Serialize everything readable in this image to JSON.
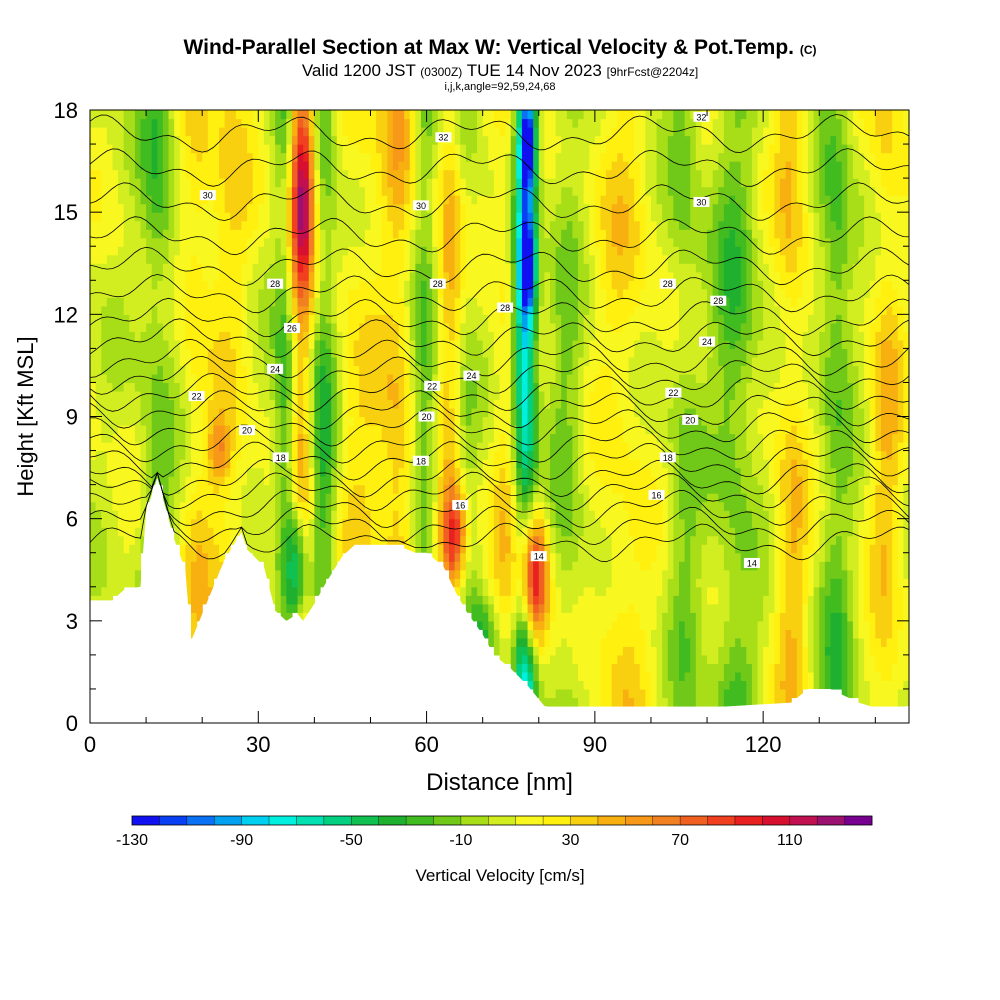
{
  "title": {
    "main": "Wind-Parallel Section at Max W: Vertical Velocity & Pot.Temp.",
    "copyright": "(C)",
    "valid_prefix": "Valid 1200 JST",
    "valid_utc": "(0300Z)",
    "valid_date": "TUE 14 Nov 2023",
    "forecast": "[9hrFcst@2204z]",
    "params": "i,j,k,angle=92,59,24,68"
  },
  "chart_data": {
    "type": "heatmap",
    "xlabel": "Distance [nm]",
    "ylabel": "Height [Kft MSL]",
    "xlim": [
      0,
      146
    ],
    "ylim": [
      0,
      18
    ],
    "x_ticks": [
      0,
      30,
      60,
      90,
      120
    ],
    "y_ticks": [
      0,
      3,
      6,
      9,
      12,
      15,
      18
    ],
    "colorbar": {
      "label": "Vertical Velocity [cm/s]",
      "tick_labels": [
        -130,
        -90,
        -50,
        -10,
        30,
        70,
        110
      ],
      "bins": [
        -130,
        -120,
        -110,
        -100,
        -90,
        -80,
        -70,
        -60,
        -50,
        -40,
        -30,
        -20,
        -10,
        0,
        10,
        20,
        30,
        40,
        50,
        60,
        70,
        80,
        90,
        100,
        110,
        120,
        130
      ],
      "colors": [
        "#1010f0",
        "#0a40f4",
        "#0a70f4",
        "#00a0f0",
        "#00d0f0",
        "#00f0e0",
        "#00e0b0",
        "#00d080",
        "#10c050",
        "#20b030",
        "#40bc20",
        "#70c818",
        "#a8de18",
        "#d2ee20",
        "#f8f820",
        "#fff010",
        "#f8d010",
        "#f8b010",
        "#f89818",
        "#f08020",
        "#f06020",
        "#f04020",
        "#e82020",
        "#d81030",
        "#c01050",
        "#9c1070",
        "#780090"
      ]
    },
    "velocity_bands": [
      {
        "x": 12,
        "w": 3,
        "v": -30
      },
      {
        "x": 19,
        "w": 3,
        "v": 20
      },
      {
        "x": 25,
        "w": 4,
        "v": 20
      },
      {
        "x": 35,
        "w": 2,
        "v": -40
      },
      {
        "x": 37.5,
        "w": 2.5,
        "v": 60
      },
      {
        "x": 41.5,
        "w": 2.5,
        "v": -40
      },
      {
        "x": 48,
        "w": 5,
        "v": 20
      },
      {
        "x": 55,
        "w": 3,
        "v": 30
      },
      {
        "x": 60,
        "w": 2.5,
        "v": -30
      },
      {
        "x": 64,
        "w": 3,
        "v": 30
      },
      {
        "x": 67,
        "w": 2,
        "v": -20
      },
      {
        "x": 74,
        "w": 3,
        "v": 20
      },
      {
        "x": 77.5,
        "w": 2,
        "v": -90
      },
      {
        "x": 85,
        "w": 3,
        "v": -20
      },
      {
        "x": 95,
        "w": 5,
        "v": 20
      },
      {
        "x": 106,
        "w": 3,
        "v": -20
      },
      {
        "x": 115,
        "w": 4,
        "v": -30
      },
      {
        "x": 125,
        "w": 3,
        "v": 30
      },
      {
        "x": 133,
        "w": 3,
        "v": -30
      },
      {
        "x": 142,
        "w": 3,
        "v": 30
      }
    ],
    "velocity_cells": [
      {
        "x": 37,
        "y": 4.5,
        "rx": 2,
        "ry": 2,
        "v": -90
      },
      {
        "x": 38,
        "y": 15.5,
        "rx": 2,
        "ry": 2.5,
        "v": 60
      },
      {
        "x": 65,
        "y": 5.5,
        "rx": 2.5,
        "ry": 1.5,
        "v": 80
      },
      {
        "x": 79,
        "y": 4.2,
        "rx": 2.5,
        "ry": 2,
        "v": 110
      },
      {
        "x": 78,
        "y": 17,
        "rx": 1.5,
        "ry": 1.5,
        "v": -110
      },
      {
        "x": 78,
        "y": 13.5,
        "rx": 1.5,
        "ry": 1.5,
        "v": -90
      },
      {
        "x": 70,
        "y": 2.5,
        "rx": 3,
        "ry": 1.2,
        "v": -40
      },
      {
        "x": 23,
        "y": 8,
        "rx": 2,
        "ry": 1,
        "v": 40
      }
    ],
    "terrain": [
      [
        0,
        3.6
      ],
      [
        4,
        3.6
      ],
      [
        6,
        3.9
      ],
      [
        9,
        4.0
      ],
      [
        10,
        6.2
      ],
      [
        12,
        7.2
      ],
      [
        13,
        6.6
      ],
      [
        15,
        5.4
      ],
      [
        17,
        4.5
      ],
      [
        18,
        2.4
      ],
      [
        19,
        2.8
      ],
      [
        21,
        3.6
      ],
      [
        24,
        4.8
      ],
      [
        27,
        5.6
      ],
      [
        28,
        5.1
      ],
      [
        31,
        4.6
      ],
      [
        33,
        3.3
      ],
      [
        35,
        3.0
      ],
      [
        37,
        3.2
      ],
      [
        38,
        3.0
      ],
      [
        40,
        3.5
      ],
      [
        42,
        4.1
      ],
      [
        45,
        4.9
      ],
      [
        47,
        5.2
      ],
      [
        55,
        5.2
      ],
      [
        58,
        5.0
      ],
      [
        60,
        5.0
      ],
      [
        63,
        4.6
      ],
      [
        65,
        3.9
      ],
      [
        67,
        3.3
      ],
      [
        70,
        2.6
      ],
      [
        72,
        2.0
      ],
      [
        75,
        1.6
      ],
      [
        78,
        1.1
      ],
      [
        81,
        0.5
      ],
      [
        84,
        0.4
      ],
      [
        105,
        0.4
      ],
      [
        125,
        0.6
      ],
      [
        128,
        1.0
      ],
      [
        132,
        1.0
      ],
      [
        137,
        0.6
      ],
      [
        141,
        0.4
      ],
      [
        146,
        0.5
      ]
    ],
    "isentropes": [
      {
        "value": 14,
        "base": 5.3
      },
      {
        "value": 15,
        "base": 5.8
      },
      {
        "value": 16,
        "base": 6.3
      },
      {
        "value": 17,
        "base": 6.8
      },
      {
        "value": 18,
        "base": 7.2
      },
      {
        "value": 19,
        "base": 7.7
      },
      {
        "value": 20,
        "base": 8.2
      },
      {
        "value": 21,
        "base": 8.7
      },
      {
        "value": 22,
        "base": 9.2
      },
      {
        "value": 23,
        "base": 9.7
      },
      {
        "value": 24,
        "base": 10.2
      },
      {
        "value": 25,
        "base": 10.7
      },
      {
        "value": 26,
        "base": 11.3
      },
      {
        "value": 27,
        "base": 11.9
      },
      {
        "value": 28,
        "base": 12.6
      },
      {
        "value": 29,
        "base": 13.4
      },
      {
        "value": 30,
        "base": 14.3
      },
      {
        "value": 31,
        "base": 15.3
      },
      {
        "value": 32,
        "base": 16.3
      },
      {
        "value": 33,
        "base": 17.3
      }
    ],
    "isentrope_labels": [
      {
        "text": "32",
        "x": 63,
        "y": 17.2
      },
      {
        "text": "32",
        "x": 109,
        "y": 17.8
      },
      {
        "text": "30",
        "x": 21,
        "y": 15.5
      },
      {
        "text": "30",
        "x": 59,
        "y": 15.2
      },
      {
        "text": "30",
        "x": 109,
        "y": 15.3
      },
      {
        "text": "28",
        "x": 33,
        "y": 12.9
      },
      {
        "text": "28",
        "x": 62,
        "y": 12.9
      },
      {
        "text": "28",
        "x": 74,
        "y": 12.2
      },
      {
        "text": "28",
        "x": 103,
        "y": 12.9
      },
      {
        "text": "28",
        "x": 112,
        "y": 12.4
      },
      {
        "text": "26",
        "x": 36,
        "y": 11.6
      },
      {
        "text": "24",
        "x": 33,
        "y": 10.4
      },
      {
        "text": "24",
        "x": 68,
        "y": 10.2
      },
      {
        "text": "24",
        "x": 110,
        "y": 11.2
      },
      {
        "text": "22",
        "x": 19,
        "y": 9.6
      },
      {
        "text": "22",
        "x": 61,
        "y": 9.9
      },
      {
        "text": "22",
        "x": 104,
        "y": 9.7
      },
      {
        "text": "20",
        "x": 28,
        "y": 8.6
      },
      {
        "text": "20",
        "x": 60,
        "y": 9.0
      },
      {
        "text": "20",
        "x": 107,
        "y": 8.9
      },
      {
        "text": "18",
        "x": 34,
        "y": 7.8
      },
      {
        "text": "18",
        "x": 59,
        "y": 7.7
      },
      {
        "text": "18",
        "x": 103,
        "y": 7.8
      },
      {
        "text": "16",
        "x": 66,
        "y": 6.4
      },
      {
        "text": "16",
        "x": 101,
        "y": 6.7
      },
      {
        "text": "14",
        "x": 80,
        "y": 4.9
      },
      {
        "text": "14",
        "x": 118,
        "y": 4.7
      }
    ]
  }
}
